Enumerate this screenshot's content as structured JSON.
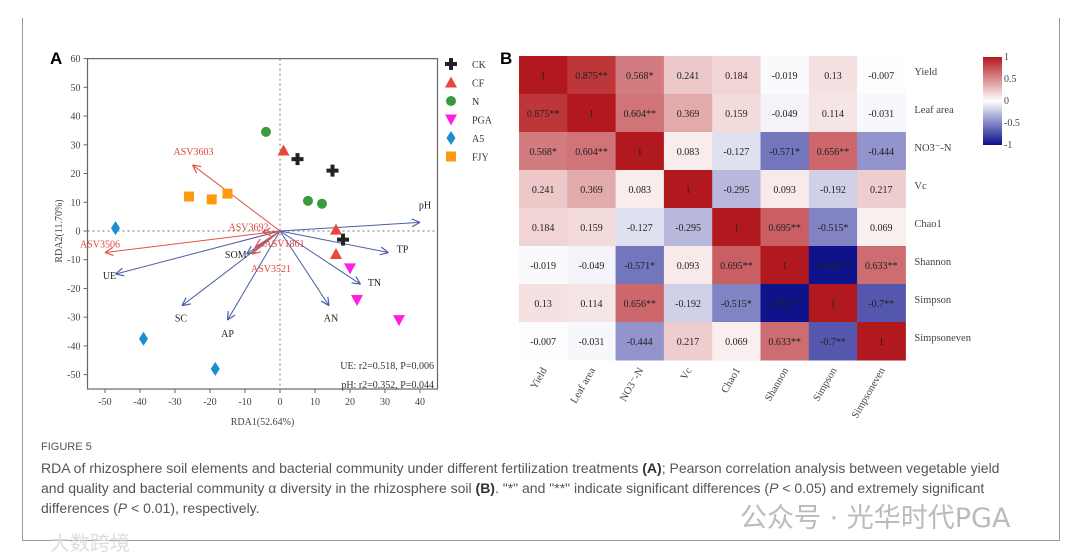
{
  "chart_data": [
    {
      "type": "scatter",
      "panel": "A",
      "xlabel": "RDA1(52.64%)",
      "ylabel": "RDA2(11.70%)",
      "xlim": [
        -55,
        45
      ],
      "ylim": [
        -55,
        60
      ],
      "xticks": [
        -50,
        -40,
        -30,
        -20,
        -10,
        0,
        10,
        20,
        30,
        40
      ],
      "yticks": [
        -50,
        -40,
        -30,
        -20,
        -10,
        0,
        10,
        20,
        30,
        40,
        50,
        60
      ],
      "legend_position": "right",
      "series": [
        {
          "name": "CK",
          "color": "#222222",
          "marker": "plus",
          "points": [
            [
              5,
              25
            ],
            [
              15,
              21
            ],
            [
              18,
              -3
            ]
          ]
        },
        {
          "name": "CF",
          "color": "#e8483b",
          "marker": "triangle",
          "points": [
            [
              1,
              28
            ],
            [
              16,
              0.5
            ],
            [
              16,
              -8
            ]
          ]
        },
        {
          "name": "N",
          "color": "#3a9a3e",
          "marker": "circle",
          "points": [
            [
              -4,
              34.5
            ],
            [
              8,
              10.5
            ],
            [
              12,
              9.5
            ]
          ]
        },
        {
          "name": "PGA",
          "color": "#ff1fe0",
          "marker": "triangle-down",
          "points": [
            [
              20,
              -13
            ],
            [
              22,
              -24
            ],
            [
              34,
              -31
            ]
          ]
        },
        {
          "name": "A5",
          "color": "#1a8ed0",
          "marker": "diamond",
          "points": [
            [
              -47,
              1
            ],
            [
              -39,
              -37.5
            ],
            [
              -18.5,
              -48
            ]
          ]
        },
        {
          "name": "FJY",
          "color": "#ff9a10",
          "marker": "square",
          "points": [
            [
              -26,
              12
            ],
            [
              -19.5,
              11
            ],
            [
              -15,
              13
            ]
          ]
        }
      ],
      "env_arrows": [
        {
          "name": "pH",
          "end": [
            40,
            3
          ]
        },
        {
          "name": "TP",
          "end": [
            31,
            -7.5
          ]
        },
        {
          "name": "TN",
          "end": [
            23,
            -18.5
          ]
        },
        {
          "name": "AN",
          "end": [
            14,
            -26
          ]
        },
        {
          "name": "AP",
          "end": [
            -15,
            -31
          ]
        },
        {
          "name": "SC",
          "end": [
            -28,
            -26
          ]
        },
        {
          "name": "UE",
          "end": [
            -47,
            -15
          ]
        },
        {
          "name": "SOM",
          "end": [
            -9.5,
            -8
          ]
        }
      ],
      "species_arrows": [
        {
          "name": "ASV3603",
          "end": [
            -25,
            23
          ]
        },
        {
          "name": "ASV3692",
          "end": [
            -5,
            -0.5
          ]
        },
        {
          "name": "ASV3506",
          "end": [
            -50,
            -7.5
          ]
        },
        {
          "name": "ASV1861",
          "end": [
            -7,
            -5.5
          ]
        },
        {
          "name": "ASV3521",
          "end": [
            -8,
            -8
          ]
        }
      ],
      "annotations": [
        "UE: r2=0.518, P=0.006",
        "pH: r2=0.352, P=0.044"
      ]
    },
    {
      "type": "heatmap",
      "panel": "B",
      "rows": [
        "Yield",
        "Leaf area",
        "NO3⁻-N",
        "Vc",
        "Chao1",
        "Shannon",
        "Simpson",
        "Simpsoneven"
      ],
      "values": [
        [
          1,
          0.875,
          0.568,
          0.241,
          0.184,
          -0.019,
          0.13,
          -0.007
        ],
        [
          0.875,
          1,
          0.604,
          0.369,
          0.159,
          -0.049,
          0.114,
          -0.031
        ],
        [
          0.568,
          0.604,
          1,
          0.083,
          -0.127,
          -0.571,
          0.656,
          -0.444
        ],
        [
          0.241,
          0.369,
          0.083,
          1,
          -0.295,
          0.093,
          -0.192,
          0.217
        ],
        [
          0.184,
          0.159,
          -0.127,
          -0.295,
          1,
          0.695,
          -0.515,
          0.069
        ],
        [
          -0.019,
          -0.049,
          -0.571,
          0.093,
          0.695,
          1,
          -0.982,
          0.633
        ],
        [
          0.13,
          0.114,
          0.656,
          -0.192,
          -0.515,
          -0.982,
          1,
          -0.7
        ],
        [
          -0.007,
          -0.031,
          -0.444,
          0.217,
          0.069,
          0.633,
          -0.7,
          1
        ]
      ],
      "labels": [
        [
          "1",
          "0.875**",
          "0.568*",
          "0.241",
          "0.184",
          "-0.019",
          "0.13",
          "-0.007"
        ],
        [
          "0.875**",
          "1",
          "0.604**",
          "0.369",
          "0.159",
          "-0.049",
          "0.114",
          "-0.031"
        ],
        [
          "0.568*",
          "0.604**",
          "1",
          "0.083",
          "-0.127",
          "-0.571*",
          "0.656**",
          "-0.444"
        ],
        [
          "0.241",
          "0.369",
          "0.083",
          "1",
          "-0.295",
          "0.093",
          "-0.192",
          "0.217"
        ],
        [
          "0.184",
          "0.159",
          "-0.127",
          "-0.295",
          "1",
          "0.695**",
          "-0.515*",
          "0.069"
        ],
        [
          "-0.019",
          "-0.049",
          "-0.571*",
          "0.093",
          "0.695**",
          "1",
          "-0.982**",
          "0.633**"
        ],
        [
          "0.13",
          "0.114",
          "0.656**",
          "-0.192",
          "-0.515*",
          "-0.982**",
          "1",
          "-0.7**"
        ],
        [
          "-0.007",
          "-0.031",
          "-0.444",
          "0.217",
          "0.069",
          "0.633**",
          "-0.7**",
          "1"
        ]
      ],
      "colorbar": {
        "range": [
          -1,
          1
        ],
        "ticks": [
          "1",
          "0.5",
          "0",
          "-0.5",
          "-1"
        ],
        "low": "#0a0f8a",
        "mid": "#ffffff",
        "high": "#b2191e"
      }
    }
  ],
  "panel_labels": {
    "a": "A",
    "b": "B"
  },
  "caption": {
    "title": "FIGURE 5",
    "p1": "RDA of rhizosphere soil elements and bacterial community under different fertilization treatments ",
    "a": "(A)",
    "p2": "; Pearson correlation analysis between vegetable yield and quality and bacterial community α diversity in the rhizosphere soil ",
    "b": "(B)",
    "p3": ". \"*\" and \"**\" indicate significant differences (",
    "pi": "P",
    "p4": " < 0.05) and extremely significant differences (",
    "pj": "P",
    "p5": " < 0.01), respectively."
  },
  "watermarks": {
    "right": "公众号 · 光华时代PGA",
    "left": "大数跨境"
  }
}
